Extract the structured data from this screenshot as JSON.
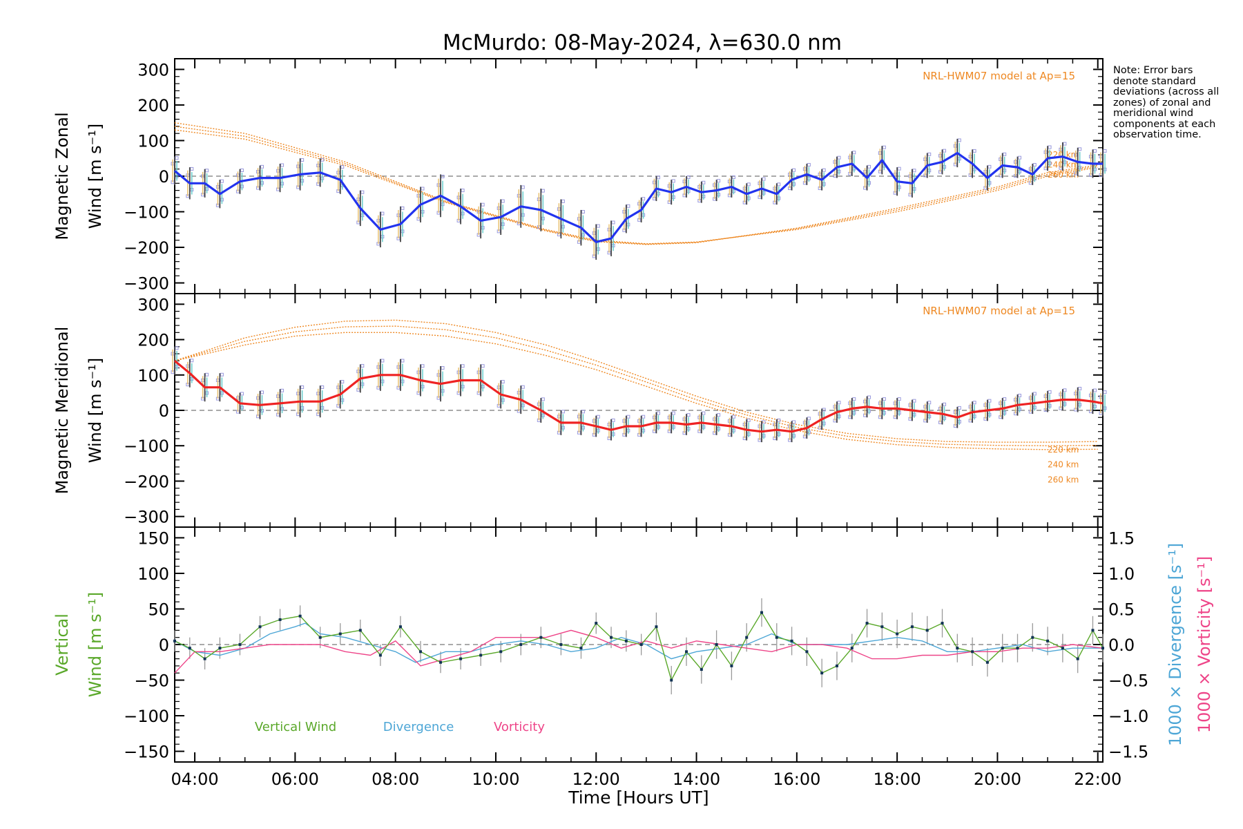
{
  "title": "McMurdo: 08-May-2024, λ=630.0 nm",
  "note": "Note: Error bars denote standard deviations (across all zones) of zonal and meridional wind components at each observation time.",
  "xlabel": "Time [Hours UT]",
  "colors": {
    "zonal": "#2233ee",
    "meridional": "#ee2222",
    "vertical": "#5aa82a",
    "divergence": "#4da6d6",
    "vorticity": "#ee4488",
    "model": "#ee8822",
    "zones": "#9999dd"
  },
  "chart_data": [
    {
      "type": "line",
      "name": "zonal",
      "ylabel_line1": "Magnetic Zonal",
      "ylabel_line2": "Wind [m s⁻¹]",
      "xlim": [
        3.6,
        22.1
      ],
      "ylim": [
        -330,
        330
      ],
      "xticks": [
        4,
        6,
        8,
        10,
        12,
        14,
        16,
        18,
        20,
        22
      ],
      "xtick_labels": [
        "04:00",
        "06:00",
        "08:00",
        "10:00",
        "12:00",
        "14:00",
        "16:00",
        "18:00",
        "20:00",
        "22:00"
      ],
      "yticks": [
        -300,
        -200,
        -100,
        0,
        100,
        200,
        300
      ],
      "model_label": "NRL-HWM07 model at Ap=15",
      "model_altitudes": [
        "220 km",
        "240 km",
        "260 km"
      ],
      "model_curves": [
        {
          "x": [
            3.6,
            5,
            7,
            9,
            11,
            12,
            13,
            14,
            16,
            18,
            20,
            21,
            22
          ],
          "y": [
            150,
            120,
            40,
            -70,
            -150,
            -180,
            -190,
            -185,
            -150,
            -100,
            -40,
            0,
            25
          ]
        },
        {
          "x": [
            3.6,
            5,
            7,
            9,
            11,
            12,
            13,
            14,
            16,
            18,
            20,
            21,
            22
          ],
          "y": [
            140,
            112,
            35,
            -72,
            -152,
            -182,
            -191,
            -186,
            -148,
            -95,
            -35,
            5,
            28
          ]
        },
        {
          "x": [
            3.6,
            5,
            7,
            9,
            11,
            12,
            13,
            14,
            16,
            18,
            20,
            21,
            22
          ],
          "y": [
            130,
            104,
            30,
            -74,
            -154,
            -184,
            -192,
            -187,
            -146,
            -90,
            -30,
            10,
            31
          ]
        }
      ],
      "series": [
        {
          "name": "Zonal wind",
          "x": [
            3.6,
            3.9,
            4.2,
            4.5,
            4.9,
            5.3,
            5.7,
            6.1,
            6.5,
            6.9,
            7.3,
            7.7,
            8.1,
            8.5,
            8.9,
            9.3,
            9.7,
            10.1,
            10.5,
            10.9,
            11.3,
            11.7,
            12.0,
            12.3,
            12.6,
            12.9,
            13.2,
            13.5,
            13.8,
            14.1,
            14.4,
            14.7,
            15.0,
            15.3,
            15.6,
            15.9,
            16.2,
            16.5,
            16.8,
            17.1,
            17.4,
            17.7,
            18.0,
            18.3,
            18.6,
            18.9,
            19.2,
            19.5,
            19.8,
            20.1,
            20.4,
            20.7,
            21.0,
            21.3,
            21.6,
            21.9,
            22.1
          ],
          "y": [
            15,
            -20,
            -20,
            -50,
            -15,
            -5,
            -5,
            5,
            10,
            -10,
            -90,
            -150,
            -135,
            -80,
            -55,
            -85,
            -125,
            -115,
            -85,
            -95,
            -120,
            -145,
            -185,
            -175,
            -120,
            -95,
            -35,
            -45,
            -30,
            -45,
            -40,
            -30,
            -50,
            -35,
            -50,
            -10,
            5,
            -10,
            25,
            35,
            -5,
            45,
            -15,
            -20,
            30,
            40,
            65,
            35,
            -5,
            30,
            25,
            5,
            50,
            55,
            40,
            35,
            35
          ],
          "err": [
            40,
            45,
            40,
            40,
            35,
            35,
            40,
            45,
            40,
            40,
            50,
            50,
            50,
            50,
            60,
            50,
            50,
            50,
            60,
            60,
            55,
            50,
            50,
            50,
            40,
            35,
            35,
            35,
            30,
            30,
            30,
            30,
            30,
            30,
            30,
            30,
            30,
            30,
            30,
            35,
            35,
            40,
            40,
            40,
            35,
            35,
            40,
            40,
            35,
            35,
            30,
            30,
            35,
            40,
            40,
            40,
            40
          ]
        }
      ]
    },
    {
      "type": "line",
      "name": "meridional",
      "ylabel_line1": "Magnetic Meridional",
      "ylabel_line2": "Wind [m s⁻¹]",
      "xlim": [
        3.6,
        22.1
      ],
      "ylim": [
        -330,
        330
      ],
      "yticks": [
        -300,
        -200,
        -100,
        0,
        100,
        200,
        300
      ],
      "model_label": "NRL-HWM07 model at Ap=15",
      "model_altitudes": [
        "220 km",
        "240 km",
        "260 km"
      ],
      "model_curves": [
        {
          "x": [
            3.6,
            5,
            6,
            7,
            8,
            9,
            10,
            11,
            12,
            13,
            14,
            15,
            16,
            17,
            18,
            19,
            20,
            21,
            22
          ],
          "y": [
            140,
            205,
            235,
            252,
            255,
            245,
            220,
            185,
            140,
            90,
            40,
            -5,
            -40,
            -65,
            -80,
            -88,
            -90,
            -90,
            -88
          ]
        },
        {
          "x": [
            3.6,
            5,
            6,
            7,
            8,
            9,
            10,
            11,
            12,
            13,
            14,
            15,
            16,
            17,
            18,
            19,
            20,
            21,
            22
          ],
          "y": [
            140,
            195,
            222,
            236,
            238,
            228,
            205,
            170,
            128,
            80,
            30,
            -13,
            -48,
            -73,
            -88,
            -96,
            -99,
            -100,
            -99
          ]
        },
        {
          "x": [
            3.6,
            5,
            6,
            7,
            8,
            9,
            10,
            11,
            12,
            13,
            14,
            15,
            16,
            17,
            18,
            19,
            20,
            21,
            22
          ],
          "y": [
            140,
            185,
            210,
            220,
            220,
            210,
            188,
            155,
            115,
            68,
            20,
            -22,
            -57,
            -82,
            -97,
            -105,
            -109,
            -111,
            -110
          ]
        }
      ],
      "series": [
        {
          "name": "Meridional wind",
          "x": [
            3.6,
            3.9,
            4.2,
            4.5,
            4.9,
            5.3,
            5.7,
            6.1,
            6.5,
            6.9,
            7.3,
            7.7,
            8.1,
            8.5,
            8.9,
            9.3,
            9.7,
            10.1,
            10.5,
            10.9,
            11.3,
            11.7,
            12.0,
            12.3,
            12.6,
            12.9,
            13.2,
            13.5,
            13.8,
            14.1,
            14.4,
            14.7,
            15.0,
            15.3,
            15.6,
            15.9,
            16.2,
            16.5,
            16.8,
            17.1,
            17.4,
            17.7,
            18.0,
            18.3,
            18.6,
            18.9,
            19.2,
            19.5,
            19.8,
            20.1,
            20.4,
            20.7,
            21.0,
            21.3,
            21.6,
            21.9,
            22.1
          ],
          "y": [
            140,
            105,
            65,
            65,
            20,
            15,
            20,
            25,
            25,
            45,
            90,
            100,
            100,
            85,
            75,
            85,
            85,
            45,
            30,
            0,
            -35,
            -35,
            -45,
            -55,
            -45,
            -45,
            -35,
            -35,
            -40,
            -35,
            -40,
            -45,
            -55,
            -60,
            -55,
            -60,
            -50,
            -25,
            -5,
            5,
            10,
            5,
            5,
            0,
            -5,
            -10,
            -20,
            -5,
            0,
            5,
            15,
            20,
            25,
            30,
            30,
            25,
            20
          ],
          "err": [
            40,
            40,
            40,
            40,
            30,
            40,
            40,
            45,
            45,
            40,
            40,
            45,
            45,
            45,
            50,
            45,
            45,
            40,
            40,
            35,
            35,
            35,
            30,
            30,
            30,
            30,
            30,
            30,
            30,
            30,
            30,
            30,
            30,
            30,
            30,
            30,
            30,
            30,
            30,
            30,
            30,
            30,
            30,
            30,
            30,
            30,
            30,
            30,
            30,
            30,
            30,
            30,
            30,
            30,
            35,
            35,
            35
          ]
        }
      ]
    },
    {
      "type": "line",
      "name": "vertical",
      "ylabel_line1": "Vertical",
      "ylabel_line2": "Wind [m s⁻¹]",
      "right_label_div": "1000 × Divergence [s⁻¹]",
      "right_label_vort": "1000 × Vorticity [s⁻¹]",
      "xlim": [
        3.6,
        22.1
      ],
      "ylim": [
        -165,
        165
      ],
      "yticks": [
        -150,
        -100,
        -50,
        0,
        50,
        100,
        150
      ],
      "y2lim": [
        -1.65,
        1.65
      ],
      "y2ticks": [
        -1.5,
        -1.0,
        -0.5,
        0.0,
        0.5,
        1.0,
        1.5
      ],
      "legend": [
        "Vertical Wind",
        "Divergence",
        "Vorticity"
      ],
      "series": [
        {
          "name": "Vertical Wind",
          "x": [
            3.6,
            3.9,
            4.2,
            4.5,
            4.9,
            5.3,
            5.7,
            6.1,
            6.5,
            6.9,
            7.3,
            7.7,
            8.1,
            8.5,
            8.9,
            9.3,
            9.7,
            10.1,
            10.5,
            10.9,
            11.3,
            11.7,
            12.0,
            12.3,
            12.6,
            12.9,
            13.2,
            13.5,
            13.8,
            14.1,
            14.4,
            14.7,
            15.0,
            15.3,
            15.6,
            15.9,
            16.2,
            16.5,
            16.8,
            17.1,
            17.4,
            17.7,
            18.0,
            18.3,
            18.6,
            18.9,
            19.2,
            19.5,
            19.8,
            20.1,
            20.4,
            20.7,
            21.0,
            21.3,
            21.6,
            21.9,
            22.1
          ],
          "y": [
            5,
            -5,
            -20,
            -5,
            0,
            25,
            35,
            40,
            10,
            15,
            20,
            -15,
            25,
            -10,
            -25,
            -20,
            -15,
            -10,
            0,
            10,
            0,
            -5,
            30,
            10,
            5,
            0,
            25,
            -50,
            -10,
            -35,
            0,
            -30,
            10,
            45,
            10,
            5,
            -10,
            -40,
            -30,
            -5,
            30,
            25,
            15,
            25,
            20,
            30,
            -5,
            -10,
            -25,
            -5,
            -5,
            10,
            5,
            -5,
            -20,
            20,
            -5
          ],
          "err": [
            15,
            15,
            15,
            15,
            15,
            15,
            15,
            15,
            15,
            15,
            15,
            15,
            15,
            15,
            15,
            15,
            15,
            15,
            15,
            15,
            15,
            15,
            15,
            15,
            15,
            15,
            20,
            20,
            20,
            20,
            20,
            20,
            20,
            20,
            20,
            20,
            20,
            20,
            20,
            20,
            20,
            20,
            20,
            20,
            20,
            20,
            20,
            20,
            20,
            20,
            20,
            20,
            20,
            20,
            20,
            20,
            20
          ]
        },
        {
          "name": "Divergence",
          "x": [
            3.6,
            4.0,
            4.5,
            5.0,
            5.5,
            6.0,
            6.2,
            6.5,
            7.0,
            7.5,
            8.0,
            8.4,
            9.0,
            9.5,
            10.0,
            10.5,
            11.0,
            11.5,
            12.0,
            12.5,
            13.0,
            13.5,
            14.0,
            14.5,
            15.0,
            15.5,
            16.0,
            16.5,
            17.0,
            17.5,
            18.0,
            18.5,
            19.0,
            19.5,
            20.0,
            20.5,
            21.0,
            21.5,
            22.1
          ],
          "y": [
            0.05,
            -0.1,
            -0.15,
            -0.05,
            0.15,
            0.25,
            0.3,
            0.15,
            0.1,
            0.0,
            -0.1,
            -0.25,
            -0.1,
            -0.1,
            0.0,
            0.05,
            0.0,
            -0.1,
            -0.05,
            0.1,
            0.0,
            -0.2,
            -0.1,
            -0.05,
            0.0,
            0.15,
            0.0,
            0.0,
            0.0,
            0.05,
            0.1,
            0.05,
            -0.1,
            -0.1,
            -0.05,
            0.0,
            -0.1,
            -0.05,
            -0.05
          ]
        },
        {
          "name": "Vorticity",
          "x": [
            3.6,
            4.0,
            4.5,
            5.0,
            5.5,
            6.0,
            6.5,
            7.0,
            7.5,
            8.0,
            8.5,
            9.0,
            9.5,
            10.0,
            10.5,
            11.0,
            11.5,
            12.0,
            12.5,
            13.0,
            13.5,
            14.0,
            14.5,
            15.0,
            15.5,
            16.0,
            16.5,
            17.0,
            17.5,
            18.0,
            18.5,
            19.0,
            19.5,
            20.0,
            20.5,
            21.0,
            21.5,
            22.1
          ],
          "y": [
            -0.4,
            -0.1,
            -0.1,
            -0.05,
            0.0,
            0.0,
            0.0,
            -0.1,
            -0.15,
            0.05,
            -0.3,
            -0.2,
            -0.1,
            0.1,
            0.1,
            0.1,
            0.2,
            0.1,
            -0.05,
            0.05,
            -0.05,
            0.05,
            0.0,
            -0.05,
            -0.1,
            0.0,
            0.0,
            -0.05,
            -0.2,
            -0.2,
            -0.15,
            -0.15,
            -0.1,
            -0.1,
            -0.05,
            -0.05,
            0.0,
            -0.05
          ]
        }
      ]
    }
  ]
}
